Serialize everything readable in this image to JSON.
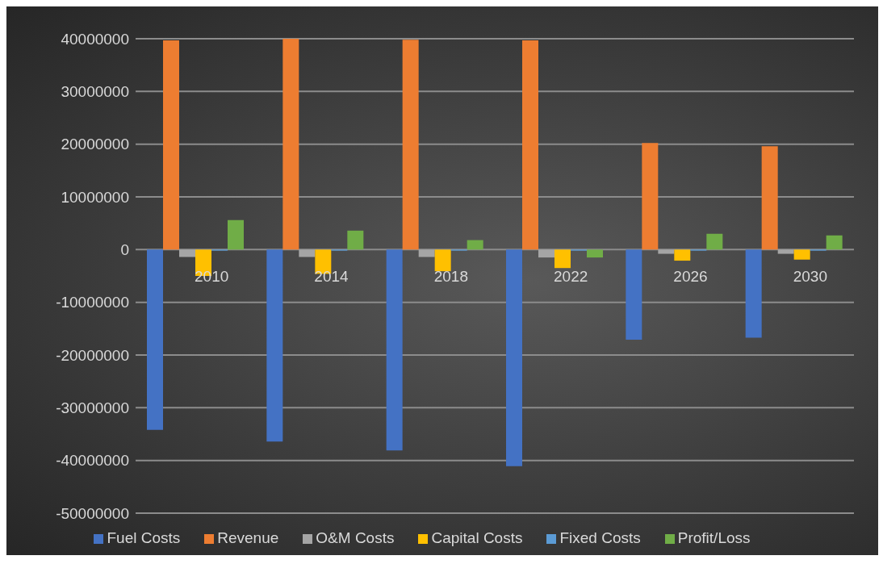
{
  "chart_data": {
    "type": "bar",
    "categories": [
      "2010",
      "2014",
      "2018",
      "2022",
      "2026",
      "2030"
    ],
    "series": [
      {
        "name": "Fuel Costs",
        "color": "#4472c4",
        "values": [
          -34200000,
          -36400000,
          -38100000,
          -41100000,
          -17100000,
          -16700000
        ]
      },
      {
        "name": "Revenue",
        "color": "#ed7d31",
        "values": [
          39700000,
          40000000,
          39800000,
          39700000,
          20200000,
          19600000
        ]
      },
      {
        "name": "O&M Costs",
        "color": "#a5a5a5",
        "values": [
          -1400000,
          -1400000,
          -1400000,
          -1500000,
          -800000,
          -800000
        ]
      },
      {
        "name": "Capital Costs",
        "color": "#ffc000",
        "values": [
          -5000000,
          -4600000,
          -4100000,
          -3500000,
          -2100000,
          -1900000
        ]
      },
      {
        "name": "Fixed Costs",
        "color": "#5b9bd5",
        "values": [
          -200000,
          -200000,
          -200000,
          -200000,
          -200000,
          -200000
        ]
      },
      {
        "name": "Profit/Loss",
        "color": "#70ad47",
        "values": [
          5600000,
          3600000,
          1800000,
          -1500000,
          3000000,
          2700000
        ]
      }
    ],
    "ylim": [
      -50000000,
      40000000
    ],
    "yticks": [
      -50000000,
      -40000000,
      -30000000,
      -20000000,
      -10000000,
      0,
      10000000,
      20000000,
      30000000,
      40000000
    ],
    "grid": "y",
    "legend": "bottom"
  }
}
